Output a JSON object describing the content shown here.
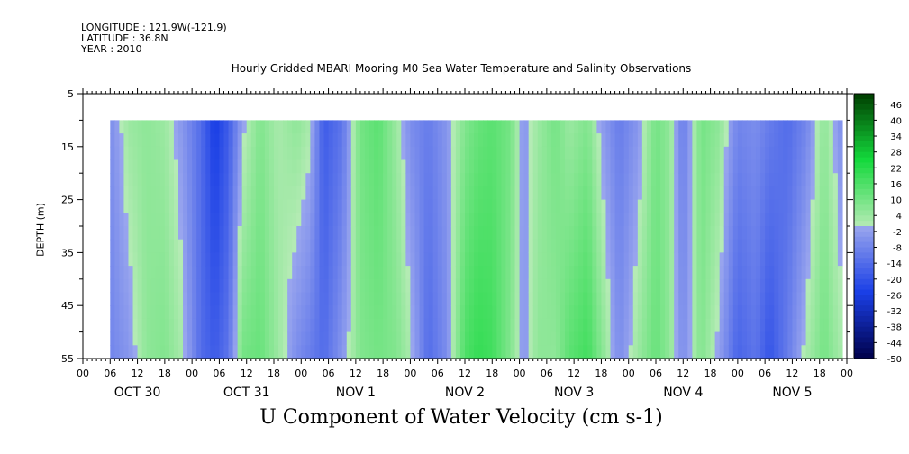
{
  "header": {
    "longitude": "LONGITUDE : 121.9W(-121.9)",
    "latitude": "LATITUDE : 36.8N",
    "year": "YEAR : 2010"
  },
  "chart_data": {
    "type": "heatmap",
    "title": "Hourly Gridded MBARI Mooring M0 Sea Water Temperature and Salinity Observations",
    "xlabel": "U Component of Water Velocity (cm s-1)",
    "ylabel": "DEPTH (m)",
    "x_range_hours": [
      0,
      168
    ],
    "data_x_range_hours": [
      6,
      167
    ],
    "ylim": [
      5,
      55
    ],
    "y_inverted": true,
    "data_depth_range": [
      10,
      55
    ],
    "y_ticks": [
      5,
      15,
      25,
      35,
      45,
      55
    ],
    "x_hour_ticks": [
      "00",
      "06",
      "12",
      "18",
      "00",
      "06",
      "12",
      "18",
      "00",
      "06",
      "12",
      "18",
      "00",
      "06",
      "12",
      "18",
      "00",
      "06",
      "12",
      "18",
      "00",
      "06",
      "12",
      "18",
      "00",
      "06",
      "12",
      "18",
      "00"
    ],
    "date_labels": [
      "OCT 30",
      "OCT 31",
      "NOV  1",
      "NOV  2",
      "NOV  3",
      "NOV  4",
      "NOV  5"
    ],
    "colorbar": {
      "min": -50,
      "max": 50,
      "tick_labels": [
        "46",
        "40",
        "34",
        "28",
        "22",
        "16",
        "10",
        "4",
        "-2",
        "-8",
        "-14",
        "-20",
        "-26",
        "-32",
        "-38",
        "-44",
        "-50"
      ],
      "negative_colors": [
        "#00004a",
        "#1a3fe6",
        "#9aa6ee"
      ],
      "positive_colors": [
        "#b5ebb5",
        "#14d93c",
        "#003d00"
      ]
    },
    "velocity_profile": [
      {
        "hour": 6,
        "surface": -6,
        "bottom": -8
      },
      {
        "hour": 10,
        "surface": 4,
        "bottom": -4
      },
      {
        "hour": 14,
        "surface": 6,
        "bottom": 6
      },
      {
        "hour": 18,
        "surface": 4,
        "bottom": 8
      },
      {
        "hour": 22,
        "surface": -4,
        "bottom": 2
      },
      {
        "hour": 26,
        "surface": -14,
        "bottom": -14
      },
      {
        "hour": 29,
        "surface": -26,
        "bottom": -18
      },
      {
        "hour": 32,
        "surface": -18,
        "bottom": -12
      },
      {
        "hour": 35,
        "surface": -2,
        "bottom": 10
      },
      {
        "hour": 39,
        "surface": 8,
        "bottom": 12
      },
      {
        "hour": 43,
        "surface": 2,
        "bottom": 4
      },
      {
        "hour": 47,
        "surface": 6,
        "bottom": -6
      },
      {
        "hour": 50,
        "surface": 2,
        "bottom": -10
      },
      {
        "hour": 53,
        "surface": -18,
        "bottom": -14
      },
      {
        "hour": 57,
        "surface": -12,
        "bottom": -4
      },
      {
        "hour": 61,
        "surface": 10,
        "bottom": 8
      },
      {
        "hour": 65,
        "surface": 14,
        "bottom": 10
      },
      {
        "hour": 69,
        "surface": 4,
        "bottom": 8
      },
      {
        "hour": 72,
        "surface": -6,
        "bottom": 2
      },
      {
        "hour": 76,
        "surface": -10,
        "bottom": -14
      },
      {
        "hour": 80,
        "surface": -4,
        "bottom": -6
      },
      {
        "hour": 84,
        "surface": 8,
        "bottom": 16
      },
      {
        "hour": 87,
        "surface": 12,
        "bottom": 20
      },
      {
        "hour": 90,
        "surface": 14,
        "bottom": 18
      },
      {
        "hour": 94,
        "surface": 10,
        "bottom": 8
      },
      {
        "hour": 97,
        "surface": -4,
        "bottom": -4
      },
      {
        "hour": 100,
        "surface": 4,
        "bottom": 6
      },
      {
        "hour": 104,
        "surface": 10,
        "bottom": 6
      },
      {
        "hour": 107,
        "surface": 4,
        "bottom": 14
      },
      {
        "hour": 111,
        "surface": 8,
        "bottom": 18
      },
      {
        "hour": 114,
        "surface": -2,
        "bottom": 8
      },
      {
        "hour": 118,
        "surface": -10,
        "bottom": -6
      },
      {
        "hour": 122,
        "surface": -4,
        "bottom": 4
      },
      {
        "hour": 126,
        "surface": 10,
        "bottom": 12
      },
      {
        "hour": 129,
        "surface": 6,
        "bottom": 6
      },
      {
        "hour": 132,
        "surface": -10,
        "bottom": -6
      },
      {
        "hour": 136,
        "surface": 10,
        "bottom": 8
      },
      {
        "hour": 140,
        "surface": 6,
        "bottom": -2
      },
      {
        "hour": 144,
        "surface": -8,
        "bottom": -16
      },
      {
        "hour": 148,
        "surface": -6,
        "bottom": -12
      },
      {
        "hour": 151,
        "surface": -10,
        "bottom": -20
      },
      {
        "hour": 155,
        "surface": -14,
        "bottom": -10
      },
      {
        "hour": 159,
        "surface": -8,
        "bottom": 2
      },
      {
        "hour": 163,
        "surface": 6,
        "bottom": 10
      },
      {
        "hour": 167,
        "surface": -6,
        "bottom": 2
      }
    ]
  }
}
